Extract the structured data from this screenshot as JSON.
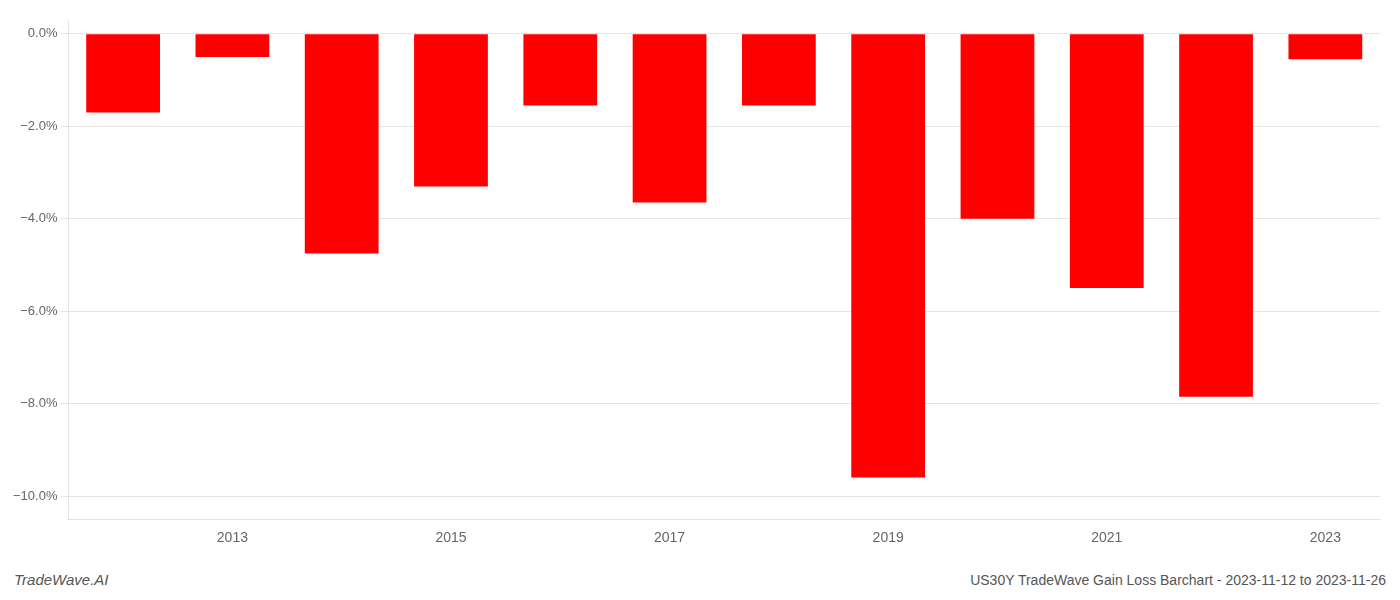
{
  "chart_data": {
    "type": "bar",
    "categories": [
      null,
      "2013",
      null,
      "2015",
      null,
      "2017",
      null,
      "2019",
      null,
      "2021",
      null,
      "2023"
    ],
    "values": [
      -1.7,
      -0.5,
      -4.75,
      -3.3,
      -1.55,
      -3.65,
      -1.55,
      -9.6,
      -4.0,
      -5.5,
      -7.85,
      -0.55
    ],
    "color": "#FF0000",
    "ylim": [
      -10.5,
      0.3
    ],
    "yticks": [
      {
        "value": 0.0,
        "label": "0.0%"
      },
      {
        "value": -2.0,
        "label": "−2.0%"
      },
      {
        "value": -4.0,
        "label": "−4.0%"
      },
      {
        "value": -6.0,
        "label": "−6.0%"
      },
      {
        "value": -8.0,
        "label": "−8.0%"
      },
      {
        "value": -10.0,
        "label": "−10.0%"
      }
    ],
    "grid": true,
    "annotations": [
      "TradeWave.AI",
      "US30Y TradeWave Gain Loss Barchart - 2023-11-12 to 2023-11-26"
    ]
  }
}
